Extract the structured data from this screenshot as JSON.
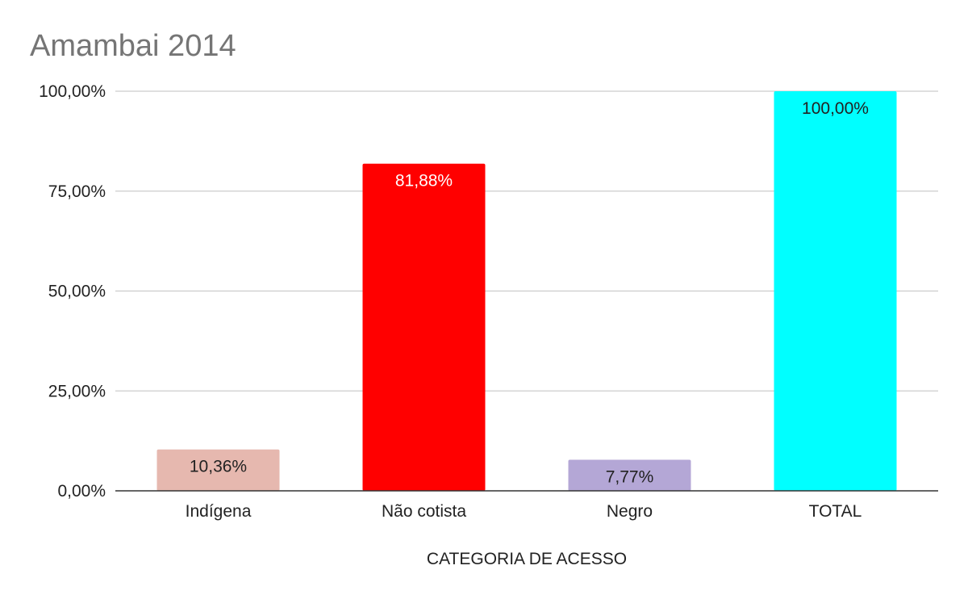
{
  "chart_data": {
    "type": "bar",
    "title": "Amambai 2014",
    "xlabel": "CATEGORIA DE ACESSO",
    "ylabel": "",
    "ylim": [
      0,
      100
    ],
    "yticks": [
      0,
      25,
      50,
      75,
      100
    ],
    "ytick_labels": [
      "0,00%",
      "25,00%",
      "50,00%",
      "75,00%",
      "100,00%"
    ],
    "grid": true,
    "legend": "none",
    "categories": [
      "Indígena",
      "Não cotista",
      "Negro",
      "TOTAL"
    ],
    "values": [
      10.36,
      81.88,
      7.77,
      100.0
    ],
    "value_labels": [
      "10,36%",
      "81,88%",
      "7,77%",
      "100,00%"
    ],
    "colors": [
      "#e6b8af",
      "#ff0000",
      "#b4a7d6",
      "#00ffff"
    ],
    "label_colors": [
      "#222222",
      "#ffffff",
      "#222222",
      "#222222"
    ]
  }
}
